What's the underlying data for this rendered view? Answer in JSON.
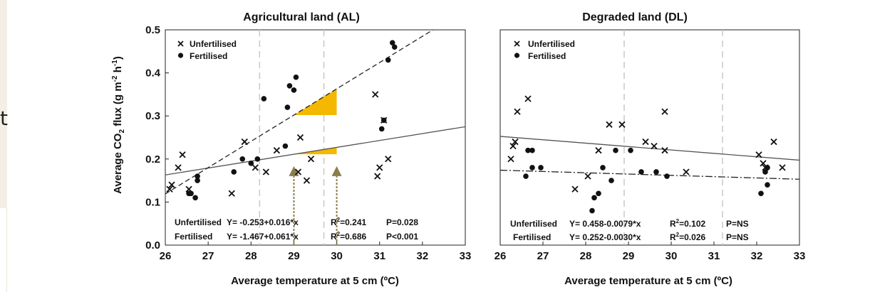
{
  "edge_fragment": "t",
  "shared": {
    "ylabel": "Average CO",
    "ylabel_sub": "2",
    "ylabel_rest": " flux (g m",
    "ylabel_sup1": "-2",
    "ylabel_mid": " h",
    "ylabel_sup2": "-1",
    "ylabel_end": ")",
    "xlabel": "Average temperature at 5 cm (ºC)"
  },
  "chart_data": [
    {
      "type": "scatter",
      "title": "Agricultural land (AL)",
      "xlim": [
        26,
        33
      ],
      "ylim": [
        0.0,
        0.5
      ],
      "xticks": [
        "26",
        "27",
        "28",
        "29",
        "30",
        "31",
        "32",
        "33"
      ],
      "yticks": [
        "0.0",
        "0.1",
        "0.2",
        "0.3",
        "0.4",
        "0.5"
      ],
      "legend": [
        "Unfertilised",
        "Fertilised"
      ],
      "legend_position": "top-left",
      "vlines": [
        28.2,
        29.7
      ],
      "series": [
        {
          "name": "Unfertilised",
          "marker": "x",
          "points": [
            [
              26.1,
              0.13
            ],
            [
              26.15,
              0.14
            ],
            [
              26.3,
              0.18
            ],
            [
              26.4,
              0.21
            ],
            [
              26.55,
              0.13
            ],
            [
              27.55,
              0.12
            ],
            [
              27.85,
              0.24
            ],
            [
              28.1,
              0.18
            ],
            [
              28.35,
              0.17
            ],
            [
              28.6,
              0.22
            ],
            [
              29.1,
              0.17
            ],
            [
              29.15,
              0.25
            ],
            [
              29.3,
              0.15
            ],
            [
              29.4,
              0.2
            ],
            [
              30.9,
              0.35
            ],
            [
              30.95,
              0.16
            ],
            [
              31.0,
              0.18
            ],
            [
              31.1,
              0.29
            ],
            [
              31.2,
              0.2
            ]
          ]
        },
        {
          "name": "Fertilised",
          "marker": "dot",
          "points": [
            [
              26.55,
              0.12
            ],
            [
              26.6,
              0.12
            ],
            [
              26.7,
              0.11
            ],
            [
              26.75,
              0.16
            ],
            [
              26.75,
              0.15
            ],
            [
              27.6,
              0.17
            ],
            [
              27.8,
              0.2
            ],
            [
              28.0,
              0.19
            ],
            [
              28.15,
              0.2
            ],
            [
              28.3,
              0.34
            ],
            [
              28.8,
              0.23
            ],
            [
              28.85,
              0.32
            ],
            [
              28.9,
              0.37
            ],
            [
              29.0,
              0.36
            ],
            [
              29.05,
              0.39
            ],
            [
              31.05,
              0.27
            ],
            [
              31.1,
              0.29
            ],
            [
              31.2,
              0.43
            ],
            [
              31.3,
              0.47
            ],
            [
              31.35,
              0.46
            ]
          ]
        }
      ],
      "fits": [
        {
          "series": "Unfertilised",
          "style": "solid",
          "intercept": -0.253,
          "slope": 0.016
        },
        {
          "series": "Fertilised",
          "style": "dashed",
          "intercept": -1.467,
          "slope": 0.061
        }
      ],
      "triangles": [
        {
          "x0": 29.0,
          "x1": 30.0,
          "fit": "Fertilised"
        },
        {
          "x0": 29.0,
          "x1": 30.0,
          "fit": "Unfertilised"
        }
      ],
      "arrows": [
        {
          "x": 29.0,
          "y_from": 0.0,
          "y_to": 0.18
        },
        {
          "x": 30.0,
          "y_from": 0.0,
          "y_to": 0.18
        }
      ],
      "annotations": [
        {
          "label": "Unfertilised",
          "eq": "Y= -0.253+0.016*x",
          "r2_pre": "R",
          "r2_sup": "2",
          "r2_val": "=0.241",
          "p": "P=0.028"
        },
        {
          "label": "Fertilised",
          "eq": "Y= -1.467+0.061*x",
          "r2_pre": "R",
          "r2_sup": "2",
          "r2_val": "=0.686",
          "p": "P<0.001"
        }
      ]
    },
    {
      "type": "scatter",
      "title": "Degraded land (DL)",
      "xlim": [
        26,
        33
      ],
      "ylim": [
        0.0,
        0.5
      ],
      "xticks": [
        "26",
        "27",
        "28",
        "29",
        "30",
        "31",
        "32",
        "33"
      ],
      "yticks": [],
      "legend": [
        "Unfertilised",
        "Fertilised"
      ],
      "legend_position": "top-left",
      "vlines": [
        28.9,
        31.2
      ],
      "series": [
        {
          "name": "Unfertilised",
          "marker": "x",
          "points": [
            [
              26.25,
              0.2
            ],
            [
              26.3,
              0.23
            ],
            [
              26.35,
              0.24
            ],
            [
              26.4,
              0.31
            ],
            [
              26.65,
              0.34
            ],
            [
              27.75,
              0.13
            ],
            [
              28.05,
              0.16
            ],
            [
              28.3,
              0.22
            ],
            [
              28.55,
              0.28
            ],
            [
              28.85,
              0.28
            ],
            [
              29.4,
              0.24
            ],
            [
              29.6,
              0.23
            ],
            [
              29.85,
              0.31
            ],
            [
              29.85,
              0.22
            ],
            [
              30.35,
              0.17
            ],
            [
              32.05,
              0.21
            ],
            [
              32.15,
              0.19
            ],
            [
              32.2,
              0.18
            ],
            [
              32.4,
              0.24
            ],
            [
              32.6,
              0.18
            ]
          ]
        },
        {
          "name": "Fertilised",
          "marker": "dot",
          "points": [
            [
              26.6,
              0.16
            ],
            [
              26.65,
              0.22
            ],
            [
              26.75,
              0.22
            ],
            [
              26.75,
              0.18
            ],
            [
              26.95,
              0.18
            ],
            [
              28.15,
              0.08
            ],
            [
              28.2,
              0.11
            ],
            [
              28.3,
              0.12
            ],
            [
              28.4,
              0.18
            ],
            [
              28.6,
              0.15
            ],
            [
              28.7,
              0.22
            ],
            [
              29.05,
              0.22
            ],
            [
              29.3,
              0.17
            ],
            [
              29.65,
              0.17
            ],
            [
              29.9,
              0.16
            ],
            [
              32.1,
              0.12
            ],
            [
              32.2,
              0.17
            ],
            [
              32.25,
              0.14
            ],
            [
              32.25,
              0.18
            ]
          ]
        }
      ],
      "fits": [
        {
          "series": "Unfertilised",
          "style": "solid",
          "intercept": 0.458,
          "slope": -0.0079
        },
        {
          "series": "Fertilised",
          "style": "dashdot",
          "intercept": 0.252,
          "slope": -0.003
        }
      ],
      "annotations": [
        {
          "label": "Unfertilised",
          "eq": "Y= 0.458-0.0079*x",
          "r2_pre": "R",
          "r2_sup": "2",
          "r2_val": "=0.102",
          "p": "P=NS"
        },
        {
          "label": "Fertilised",
          "eq": "Y= 0.252-0.0030*x",
          "r2_pre": "R",
          "r2_sup": "2",
          "r2_val": "=0.026",
          "p": "P=NS"
        }
      ]
    }
  ]
}
